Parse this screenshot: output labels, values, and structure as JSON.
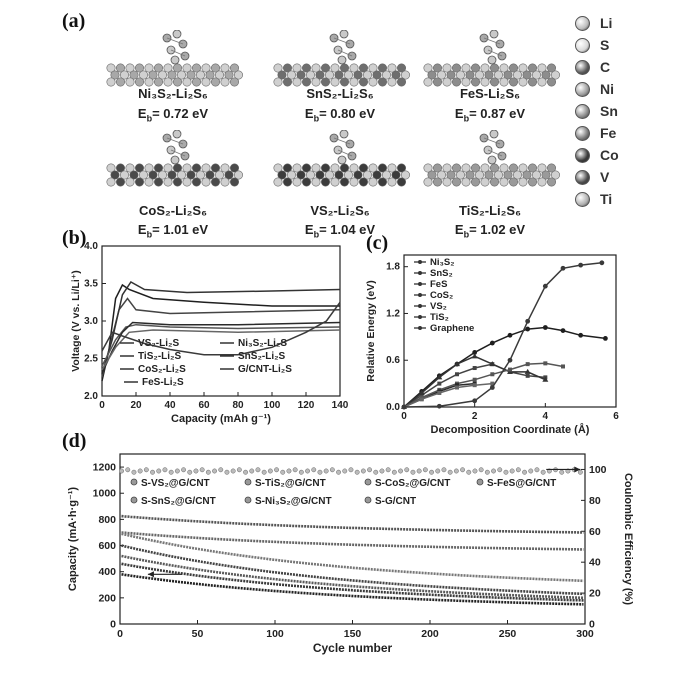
{
  "panel_labels": {
    "a": "(a)",
    "b": "(b)",
    "c": "(c)",
    "d": "(d)"
  },
  "structures": [
    {
      "name": "Ni₃S₂-Li₂S₆",
      "eb": "E",
      "eb_sub": "b",
      "eb_val": "= 0.72 eV",
      "slab_color": "#a8a8a8"
    },
    {
      "name": "SnS₂-Li₂S₆",
      "eb": "E",
      "eb_sub": "b",
      "eb_val": "= 0.80 eV",
      "slab_color": "#6e6e6e"
    },
    {
      "name": "FeS-Li₂S₆",
      "eb": "E",
      "eb_sub": "b",
      "eb_val": "= 0.87 eV",
      "slab_color": "#8d8d8d"
    },
    {
      "name": "CoS₂-Li₂S₆",
      "eb": "E",
      "eb_sub": "b",
      "eb_val": "= 1.01 eV",
      "slab_color": "#4a4a4a"
    },
    {
      "name": "VS₂-Li₂S₆",
      "eb": "E",
      "eb_sub": "b",
      "eb_val": "= 1.04 eV",
      "slab_color": "#3c3c3c"
    },
    {
      "name": "TiS₂-Li₂S₆",
      "eb": "E",
      "eb_sub": "b",
      "eb_val": "= 1.02 eV",
      "slab_color": "#9a9a9a"
    }
  ],
  "atom_legend": [
    {
      "label": "Li",
      "color": "#bdbdbd"
    },
    {
      "label": "S",
      "color": "#d8d8d8"
    },
    {
      "label": "C",
      "color": "#5a5a5a"
    },
    {
      "label": "Ni",
      "color": "#9c9c9c"
    },
    {
      "label": "Sn",
      "color": "#8a8a8a"
    },
    {
      "label": "Fe",
      "color": "#7a7a7a"
    },
    {
      "label": "Co",
      "color": "#3a3a3a"
    },
    {
      "label": "V",
      "color": "#4a4a4a"
    },
    {
      "label": "Ti",
      "color": "#b0b0b0"
    }
  ],
  "chart_data": [
    {
      "id": "b",
      "type": "line",
      "xlabel": "Capacity (mAh g⁻¹)",
      "ylabel": "Voltage (V vs. Li/Li⁺)",
      "xlim": [
        0,
        140
      ],
      "ylim": [
        2.0,
        4.0
      ],
      "x_ticks": [
        0,
        20,
        40,
        60,
        80,
        100,
        120,
        140
      ],
      "y_ticks": [
        2.0,
        2.5,
        3.0,
        3.5,
        4.0
      ],
      "legend": [
        "VS₂-Li₂S",
        "TiS₂-Li₂S",
        "CoS₂-Li₂S",
        "FeS-Li₂S",
        "Ni₃S₂-Li₂S",
        "SnS₂-Li₂S",
        "G/CNT-Li₂S"
      ],
      "series": [
        {
          "name": "VS₂-Li₂S",
          "points": [
            [
              0,
              2.2
            ],
            [
              4,
              2.6
            ],
            [
              8,
              3.3
            ],
            [
              12,
              3.48
            ],
            [
              16,
              3.42
            ],
            [
              30,
              3.3
            ],
            [
              60,
              3.25
            ],
            [
              100,
              3.2
            ],
            [
              140,
              3.2
            ]
          ]
        },
        {
          "name": "TiS₂-Li₂S",
          "points": [
            [
              0,
              2.25
            ],
            [
              5,
              2.7
            ],
            [
              10,
              3.15
            ],
            [
              15,
              3.3
            ],
            [
              20,
              3.15
            ],
            [
              40,
              3.1
            ],
            [
              80,
              3.12
            ],
            [
              140,
              3.15
            ]
          ]
        },
        {
          "name": "CoS₂-Li₂S",
          "points": [
            [
              0,
              2.3
            ],
            [
              6,
              2.75
            ],
            [
              12,
              3.35
            ],
            [
              17,
              3.52
            ],
            [
              25,
              3.42
            ],
            [
              50,
              3.38
            ],
            [
              100,
              3.4
            ],
            [
              140,
              3.42
            ]
          ]
        },
        {
          "name": "FeS-Li₂S",
          "points": [
            [
              0,
              2.4
            ],
            [
              8,
              2.75
            ],
            [
              14,
              2.92
            ],
            [
              20,
              2.95
            ],
            [
              40,
              2.92
            ],
            [
              80,
              2.9
            ],
            [
              140,
              2.92
            ]
          ]
        },
        {
          "name": "Ni₃S₂-Li₂S",
          "points": [
            [
              0,
              2.3
            ],
            [
              6,
              2.6
            ],
            [
              12,
              2.85
            ],
            [
              18,
              2.98
            ],
            [
              40,
              2.95
            ],
            [
              80,
              2.95
            ],
            [
              140,
              2.98
            ]
          ]
        },
        {
          "name": "SnS₂-Li₂S",
          "points": [
            [
              0,
              2.35
            ],
            [
              8,
              2.65
            ],
            [
              16,
              2.85
            ],
            [
              30,
              2.88
            ],
            [
              80,
              2.85
            ],
            [
              140,
              2.88
            ]
          ]
        },
        {
          "name": "G/CNT-Li₂S",
          "points": [
            [
              0,
              2.6
            ],
            [
              6,
              2.85
            ],
            [
              12,
              2.8
            ],
            [
              25,
              2.7
            ],
            [
              40,
              2.62
            ],
            [
              60,
              2.55
            ],
            [
              80,
              2.55
            ],
            [
              100,
              2.65
            ],
            [
              120,
              2.85
            ],
            [
              132,
              3.0
            ],
            [
              140,
              3.25
            ]
          ]
        }
      ]
    },
    {
      "id": "c",
      "type": "line",
      "xlabel": "Decomposition Coordinate (Å)",
      "ylabel": "Relative Energy (eV)",
      "xlim": [
        0,
        6
      ],
      "ylim": [
        0,
        1.95
      ],
      "x_ticks": [
        0,
        2,
        4,
        6
      ],
      "y_ticks": [
        0.0,
        0.6,
        1.2,
        1.8
      ],
      "legend": [
        "Ni₃S₂",
        "SnS₂",
        "FeS",
        "CoS₂",
        "VS₂",
        "TiS₂",
        "Graphene"
      ],
      "series": [
        {
          "name": "Ni₃S₂",
          "points": [
            [
              0,
              0
            ],
            [
              0.5,
              0.2
            ],
            [
              1,
              0.4
            ],
            [
              1.5,
              0.55
            ],
            [
              2,
              0.7
            ],
            [
              2.5,
              0.82
            ],
            [
              3,
              0.92
            ],
            [
              3.5,
              1.0
            ],
            [
              4,
              1.02
            ],
            [
              4.5,
              0.98
            ],
            [
              5,
              0.92
            ],
            [
              5.7,
              0.88
            ]
          ]
        },
        {
          "name": "SnS₂",
          "points": [
            [
              0,
              0
            ],
            [
              0.5,
              0.15
            ],
            [
              1,
              0.3
            ],
            [
              1.5,
              0.42
            ],
            [
              2,
              0.5
            ],
            [
              2.5,
              0.55
            ],
            [
              3,
              0.45
            ],
            [
              3.5,
              0.4
            ],
            [
              4,
              0.38
            ]
          ]
        },
        {
          "name": "FeS",
          "points": [
            [
              0,
              0
            ],
            [
              0.5,
              0.18
            ],
            [
              1,
              0.38
            ],
            [
              1.5,
              0.55
            ],
            [
              2,
              0.65
            ],
            [
              2.5,
              0.55
            ],
            [
              3,
              0.45
            ],
            [
              3.5,
              0.45
            ],
            [
              4,
              0.35
            ]
          ]
        },
        {
          "name": "CoS₂",
          "points": [
            [
              0,
              0
            ],
            [
              0.5,
              0.12
            ],
            [
              1,
              0.22
            ],
            [
              1.5,
              0.3
            ],
            [
              2,
              0.35
            ],
            [
              2.5,
              0.42
            ],
            [
              3,
              0.48
            ],
            [
              3.5,
              0.55
            ],
            [
              4,
              0.56
            ],
            [
              4.5,
              0.52
            ]
          ]
        },
        {
          "name": "VS₂",
          "points": [
            [
              0,
              0
            ],
            [
              0.5,
              0.1
            ],
            [
              1,
              0.2
            ],
            [
              1.5,
              0.28
            ],
            [
              2,
              0.3
            ]
          ]
        },
        {
          "name": "TiS₂",
          "points": [
            [
              0,
              0
            ],
            [
              0.5,
              0.1
            ],
            [
              1,
              0.18
            ],
            [
              1.5,
              0.25
            ],
            [
              2,
              0.28
            ],
            [
              2.5,
              0.3
            ]
          ]
        },
        {
          "name": "Graphene",
          "points": [
            [
              0,
              0
            ],
            [
              1,
              0.01
            ],
            [
              2,
              0.08
            ],
            [
              2.5,
              0.25
            ],
            [
              3,
              0.6
            ],
            [
              3.5,
              1.1
            ],
            [
              4,
              1.55
            ],
            [
              4.5,
              1.78
            ],
            [
              5,
              1.82
            ],
            [
              5.6,
              1.85
            ]
          ]
        }
      ]
    },
    {
      "id": "d",
      "type": "scatter",
      "xlabel": "Cycle number",
      "ylabel": "Capacity (mA·h·g⁻¹)",
      "y2label": "Coulombic Efficiency (%)",
      "xlim": [
        0,
        300
      ],
      "ylim": [
        0,
        1300
      ],
      "y2lim": [
        0,
        110
      ],
      "x_ticks": [
        0,
        50,
        100,
        150,
        200,
        250,
        300
      ],
      "y_ticks": [
        0,
        200,
        400,
        600,
        800,
        1000,
        1200
      ],
      "y2_ticks": [
        0,
        20,
        40,
        60,
        80,
        100
      ],
      "legend": [
        "S-VS₂@G/CNT",
        "S-TiS₂@G/CNT",
        "S-CoS₂@G/CNT",
        "S-FeS@G/CNT",
        "S-SnS₂@G/CNT",
        "S-Ni₃S₂@G/CNT",
        "S-G/CNT"
      ],
      "series": [
        {
          "name": "S-VS₂@G/CNT",
          "start": 825,
          "end": 700
        },
        {
          "name": "S-TiS₂@G/CNT",
          "start": 700,
          "end": 570
        },
        {
          "name": "S-CoS₂@G/CNT",
          "start": 690,
          "end": 330
        },
        {
          "name": "S-FeS@G/CNT",
          "start": 600,
          "end": 230
        },
        {
          "name": "S-SnS₂@G/CNT",
          "start": 520,
          "end": 200
        },
        {
          "name": "S-Ni₃S₂@G/CNT",
          "start": 460,
          "end": 180
        },
        {
          "name": "S-G/CNT",
          "start": 380,
          "end": 150
        }
      ],
      "coulombic_efficiency": 99
    }
  ]
}
